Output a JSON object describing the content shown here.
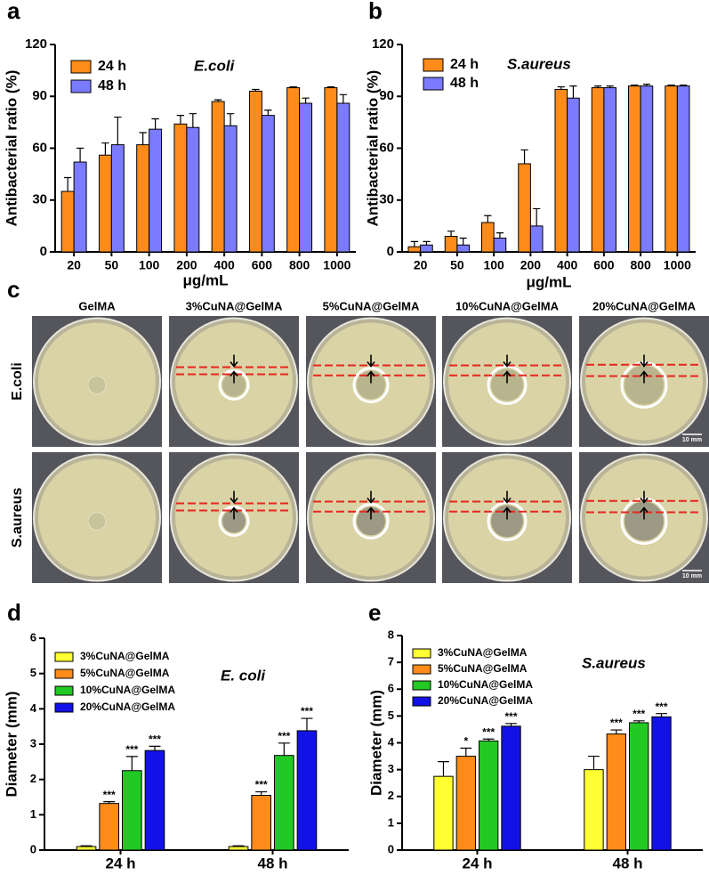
{
  "chart_data": [
    {
      "type": "bar",
      "panel_label": "a",
      "annotation": "E.coli",
      "ylabel": "Antibacterial ratio (%)",
      "xlabel": "μg/mL",
      "categories": [
        "20",
        "50",
        "100",
        "200",
        "400",
        "600",
        "800",
        "1000"
      ],
      "series": [
        {
          "name": "24 h",
          "color": "#ff8c1a",
          "values": [
            35,
            56,
            62,
            74,
            87,
            93,
            95,
            95
          ],
          "errors": [
            8,
            7,
            7,
            5,
            1,
            1,
            0.5,
            0.5
          ]
        },
        {
          "name": "48 h",
          "color": "#7b7bff",
          "values": [
            52,
            62,
            71,
            72,
            73,
            79,
            86,
            86
          ],
          "errors": [
            8,
            16,
            6,
            8,
            7,
            3,
            3,
            5
          ]
        }
      ],
      "ylim": [
        0,
        120
      ],
      "yticks": [
        0,
        30,
        60,
        90,
        120
      ],
      "grid": false,
      "legend": "upper left"
    },
    {
      "type": "bar",
      "panel_label": "b",
      "annotation": "S.aureus",
      "ylabel": "Antibacterial ratio (%)",
      "xlabel": "μg/mL",
      "categories": [
        "20",
        "50",
        "100",
        "200",
        "400",
        "600",
        "800",
        "1000"
      ],
      "series": [
        {
          "name": "24 h",
          "color": "#ff8c1a",
          "values": [
            3,
            9,
            17,
            51,
            94,
            95,
            96,
            96
          ],
          "errors": [
            3,
            3,
            4,
            8,
            1.5,
            1,
            0.5,
            0.5
          ]
        },
        {
          "name": "48 h",
          "color": "#7b7bff",
          "values": [
            4,
            4,
            8,
            15,
            89,
            95,
            96,
            96
          ],
          "errors": [
            2,
            4,
            3,
            10,
            7,
            1,
            1,
            0.5
          ]
        }
      ],
      "ylim": [
        0,
        120
      ],
      "yticks": [
        0,
        30,
        60,
        90,
        120
      ],
      "grid": false,
      "legend": "upper left"
    },
    {
      "type": "bar",
      "panel_label": "d",
      "annotation": "E. coli",
      "ylabel": "Diameter (mm)",
      "categories": [
        "24 h",
        "48 h"
      ],
      "series": [
        {
          "name": "3%CuNA@GelMA",
          "color": "#ffff33",
          "values": [
            0.1,
            0.1
          ],
          "errors": [
            0.02,
            0.02
          ],
          "significance": [
            null,
            null
          ]
        },
        {
          "name": "5%CuNA@GelMA",
          "color": "#ff8c1a",
          "values": [
            1.32,
            1.55
          ],
          "errors": [
            0.05,
            0.1
          ],
          "significance": [
            "***",
            "***"
          ]
        },
        {
          "name": "10%CuNA@GelMA",
          "color": "#22c922",
          "values": [
            2.25,
            2.68
          ],
          "errors": [
            0.4,
            0.35
          ],
          "significance": [
            "***",
            "***"
          ]
        },
        {
          "name": "20%CuNA@GelMA",
          "color": "#1212e6",
          "values": [
            2.82,
            3.38
          ],
          "errors": [
            0.12,
            0.35
          ],
          "significance": [
            "***",
            "***"
          ]
        }
      ],
      "ylim": [
        0,
        6
      ],
      "yticks": [
        0,
        1,
        2,
        3,
        4,
        5,
        6
      ],
      "grid": false,
      "legend": "upper left"
    },
    {
      "type": "bar",
      "panel_label": "e",
      "annotation": "S.aureus",
      "ylabel": "Diameter (mm)",
      "categories": [
        "24 h",
        "48 h"
      ],
      "series": [
        {
          "name": "3%CuNA@GelMA",
          "color": "#ffff33",
          "values": [
            2.75,
            3.0
          ],
          "errors": [
            0.55,
            0.5
          ],
          "significance": [
            null,
            null
          ]
        },
        {
          "name": "5%CuNA@GelMA",
          "color": "#ff8c1a",
          "values": [
            3.5,
            4.33
          ],
          "errors": [
            0.3,
            0.15
          ],
          "significance": [
            "*",
            "***"
          ]
        },
        {
          "name": "10%CuNA@GelMA",
          "color": "#22c922",
          "values": [
            4.07,
            4.75
          ],
          "errors": [
            0.07,
            0.07
          ],
          "significance": [
            "***",
            "***"
          ]
        },
        {
          "name": "20%CuNA@GelMA",
          "color": "#1212e6",
          "values": [
            4.62,
            4.97
          ],
          "errors": [
            0.1,
            0.12
          ],
          "significance": [
            "***",
            "***"
          ]
        }
      ],
      "ylim": [
        0,
        8
      ],
      "yticks": [
        0,
        1,
        2,
        3,
        4,
        5,
        6,
        7,
        8
      ],
      "grid": false,
      "legend": "upper left"
    }
  ],
  "photo_panel": {
    "panel_label": "c",
    "columns": [
      "GelMA",
      "3%CuNA@GelMA",
      "5%CuNA@GelMA",
      "10%CuNA@GelMA",
      "20%CuNA@GelMA"
    ],
    "rows": [
      "E.coli",
      "S.aureus"
    ],
    "scale_bar": "10 mm"
  }
}
